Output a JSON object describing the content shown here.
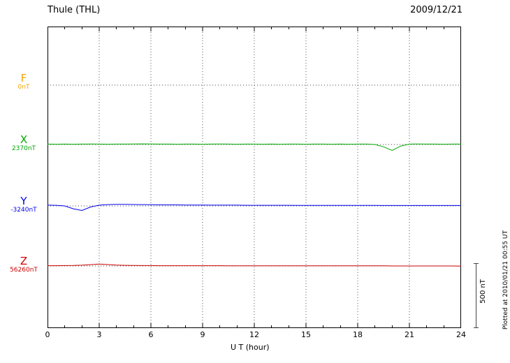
{
  "header": {
    "title": "Thule (THL)",
    "date": "2009/12/21"
  },
  "axis": {
    "xlabel": "U T (hour)",
    "ticks": [
      "0",
      "3",
      "6",
      "9",
      "12",
      "15",
      "18",
      "21",
      "24"
    ]
  },
  "channels": [
    {
      "id": "F",
      "label": "F",
      "baseline_label": "0nT",
      "color": "#f5a300"
    },
    {
      "id": "X",
      "label": "X",
      "baseline_label": "2370nT",
      "color": "#00a800"
    },
    {
      "id": "Y",
      "label": "Y",
      "baseline_label": "-3240nT",
      "color": "#0000ee"
    },
    {
      "id": "Z",
      "label": "Z",
      "baseline_label": "56260nT",
      "color": "#cc0000"
    }
  ],
  "scale_bar": {
    "label": "500 nT",
    "nT": 500
  },
  "footer_note": "Plotted at 2010/01/21 00:55 UT",
  "chart_data": {
    "type": "line",
    "title": "Thule (THL) magnetogram",
    "subtitle": "2009/12/21",
    "xlabel": "U T (hour)",
    "x_range": [
      0,
      24
    ],
    "x_step_hours": 0.5,
    "x_tick_labels": [
      "0",
      "3",
      "6",
      "9",
      "12",
      "15",
      "18",
      "21",
      "24"
    ],
    "grid": true,
    "scale_bar_nT": 500,
    "series": [
      {
        "name": "F",
        "offset_label": "0nT",
        "color": "#f5a300",
        "plotted": false,
        "values": [
          0,
          0,
          0,
          0,
          0,
          0,
          0,
          0,
          0,
          0,
          0,
          0,
          0,
          0,
          0,
          0,
          0,
          0,
          0,
          0,
          0,
          0,
          0,
          0,
          0,
          0,
          0,
          0,
          0,
          0,
          0,
          0,
          0,
          0,
          0,
          0,
          0,
          0,
          0,
          0,
          0,
          0,
          0,
          0,
          0,
          0,
          0,
          0,
          0
        ]
      },
      {
        "name": "X",
        "offset_label": "2370nT",
        "color": "#00a800",
        "plotted": true,
        "values": [
          3,
          2,
          3,
          2,
          3,
          4,
          3,
          2,
          3,
          3,
          4,
          5,
          4,
          3,
          3,
          2,
          3,
          3,
          2,
          3,
          4,
          3,
          2,
          3,
          3,
          2,
          3,
          2,
          3,
          3,
          2,
          3,
          3,
          2,
          3,
          2,
          3,
          3,
          0,
          -18,
          -45,
          -12,
          3,
          4,
          3,
          3,
          2,
          3,
          3
        ]
      },
      {
        "name": "Y",
        "offset_label": "-3240nT",
        "color": "#0000ee",
        "plotted": true,
        "values": [
          6,
          5,
          0,
          -22,
          -35,
          -8,
          6,
          10,
          12,
          12,
          11,
          10,
          9,
          8,
          8,
          8,
          7,
          7,
          7,
          6,
          6,
          6,
          6,
          5,
          5,
          5,
          5,
          5,
          5,
          4,
          4,
          4,
          4,
          4,
          4,
          4,
          4,
          4,
          4,
          3,
          3,
          3,
          3,
          3,
          3,
          3,
          3,
          3,
          3
        ]
      },
      {
        "name": "Z",
        "offset_label": "56260nT",
        "color": "#cc0000",
        "plotted": true,
        "values": [
          2,
          2,
          3,
          4,
          6,
          10,
          15,
          11,
          7,
          5,
          4,
          3,
          3,
          2,
          2,
          2,
          2,
          2,
          2,
          2,
          2,
          1,
          1,
          1,
          1,
          1,
          1,
          1,
          1,
          1,
          1,
          1,
          1,
          1,
          1,
          1,
          1,
          1,
          1,
          1,
          0,
          0,
          0,
          0,
          0,
          0,
          0,
          0,
          -1
        ]
      }
    ]
  }
}
